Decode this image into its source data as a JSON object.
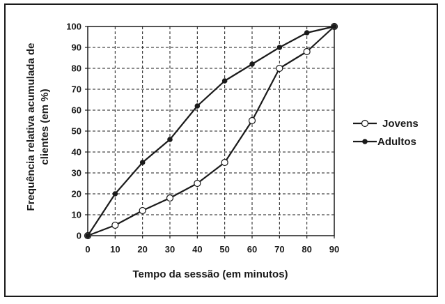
{
  "chart_data": {
    "type": "line",
    "xlabel": "Tempo da sessão (em minutos)",
    "ylabel_lines": [
      "Frequência relativa acumulada de",
      "clientes (em %)"
    ],
    "xlim": [
      0,
      90
    ],
    "ylim": [
      0,
      100
    ],
    "x_ticks": [
      "0",
      "10",
      "20",
      "30",
      "40",
      "50",
      "60",
      "70",
      "80",
      "90"
    ],
    "y_ticks": [
      "0",
      "10",
      "20",
      "30",
      "40",
      "50",
      "60",
      "70",
      "80",
      "90",
      "100"
    ],
    "grid": true,
    "grid_style": "dashed",
    "legend_position": "right",
    "series": [
      {
        "name": "Jovens",
        "marker": "open-circle",
        "x": [
          0,
          10,
          20,
          30,
          40,
          50,
          60,
          70,
          80,
          90
        ],
        "y": [
          0,
          5,
          12,
          18,
          25,
          35,
          55,
          80,
          88,
          100
        ]
      },
      {
        "name": "Adultos",
        "marker": "filled-circle",
        "x": [
          0,
          10,
          20,
          30,
          40,
          50,
          60,
          70,
          80,
          90
        ],
        "y": [
          0,
          20,
          35,
          46,
          62,
          74,
          82,
          90,
          97,
          100
        ]
      }
    ]
  },
  "colors": {
    "line": "#1a1a1a",
    "grid": "#1a1a1a",
    "background": "#ffffff"
  }
}
